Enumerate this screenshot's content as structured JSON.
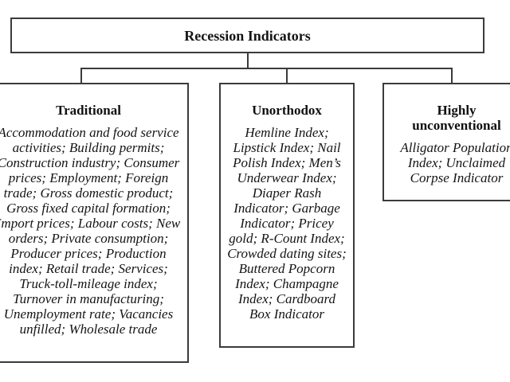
{
  "diagram": {
    "colors": {
      "border": "#3b3b3b",
      "text": "#141414",
      "background": "#ffffff"
    },
    "root": {
      "title": "Recession Indicators"
    },
    "branches": [
      {
        "id": "traditional",
        "title": "Traditional",
        "lines": [
          "Accommodation and food service",
          "activities; Building permits;",
          "Construction industry; Consumer",
          "prices; Employment; Foreign",
          "trade; Gross domestic product;",
          "Gross fixed capital formation;",
          "Import prices; Labour costs; New",
          "orders; Private consumption;",
          "Producer prices; Production",
          "index; Retail trade; Services;",
          "Truck-toll-mileage index;",
          "Turnover in manufacturing;",
          "Unemployment rate; Vacancies",
          "unfilled; Wholesale trade"
        ]
      },
      {
        "id": "unorthodox",
        "title": "Unorthodox",
        "lines": [
          "Hemline Index;",
          "Lipstick Index; Nail",
          "Polish Index; Men’s",
          "Underwear Index;",
          "Diaper Rash",
          "Indicator; Garbage",
          "Indicator; Pricey",
          "gold; R-Count Index;",
          "Crowded dating sites;",
          "Buttered Popcorn",
          "Index; Champagne",
          "Index; Cardboard",
          "Box Indicator"
        ]
      },
      {
        "id": "highly-unconventional",
        "title": "Highly unconventional",
        "title_lines": [
          "Highly",
          "unconventional"
        ],
        "lines": [
          "Alligator Population",
          "Index; Unclaimed",
          "Corpse Indicator"
        ]
      }
    ]
  }
}
